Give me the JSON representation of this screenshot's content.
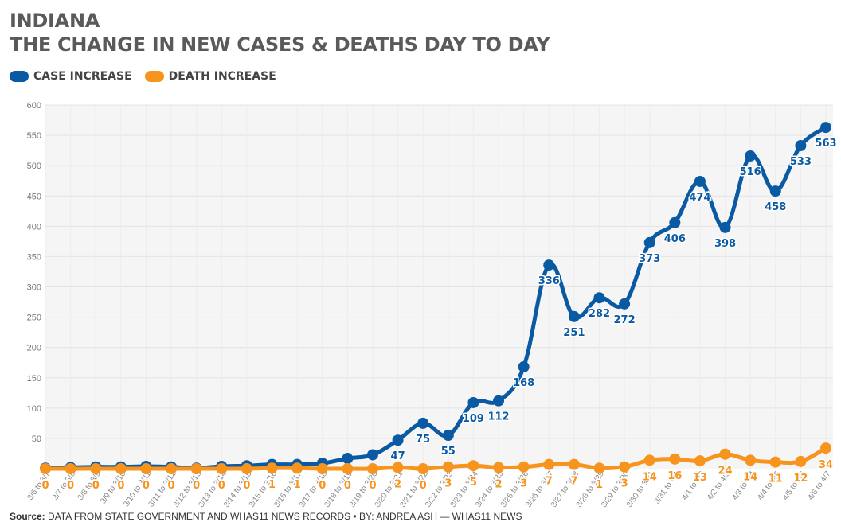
{
  "title": "INDIANA",
  "subtitle": "THE CHANGE IN NEW CASES & DEATHS DAY TO DAY",
  "legend": [
    {
      "label": "CASE INCREASE",
      "color": "#0a5aa3"
    },
    {
      "label": "DEATH INCREASE",
      "color": "#f7941d"
    }
  ],
  "source": {
    "label": "Source:",
    "text": "DATA FROM STATE GOVERNMENT AND WHAS11 NEWS RECORDS • BY: ANDREA ASH — WHAS11 NEWS"
  },
  "chart_data": {
    "type": "line",
    "categories": [
      "3/6 to 3/7",
      "3/7 to 3/8",
      "3/8 to 3/9",
      "3/9 to 3/10",
      "3/10 to 3/11",
      "3/11 to 3/12",
      "3/12 to 3/13",
      "3/13 to 3/14",
      "3/14 to 3/15",
      "3/15 to 3/16",
      "3/16 to 3/17",
      "3/17 to 3/18",
      "3/18 to 3/19",
      "3/19 to 3/20",
      "3/20 to 3/21",
      "3/21 to 3/22",
      "3/22 to 3/23",
      "3/23 to 3/24",
      "3/24 to 3/25",
      "3/25 to 3/26",
      "3/26 to 3/27",
      "3/27 to 3/28",
      "3/28 to 3/29",
      "3/29 to 3/30",
      "3/30 to 3/31",
      "3/31 to 4/1",
      "4/1 to 4/2",
      "4/2 to 4/3",
      "4/3 to 4/4",
      "4/4 to 4/5",
      "4/5 to 4/6",
      "4/6 to 4/7"
    ],
    "series": [
      {
        "name": "CASE INCREASE",
        "color": "#0a5aa3",
        "values": [
          1,
          2,
          3,
          3,
          4,
          3,
          1,
          4,
          5,
          7,
          7,
          9,
          17,
          23,
          47,
          75,
          55,
          109,
          112,
          168,
          336,
          251,
          282,
          272,
          373,
          406,
          474,
          398,
          516,
          458,
          533,
          563
        ],
        "labels": [
          "",
          "",
          "",
          "",
          "",
          "",
          "",
          "",
          "",
          "",
          "",
          "",
          "",
          "",
          "47",
          "75",
          "55",
          "109",
          "112",
          "168",
          "336",
          "251",
          "282",
          "272",
          "373",
          "406",
          "474",
          "398",
          "516",
          "458",
          "533",
          "563"
        ]
      },
      {
        "name": "DEATH INCREASE",
        "color": "#f7941d",
        "values": [
          0,
          0,
          0,
          0,
          0,
          0,
          0,
          0,
          0,
          1,
          1,
          0,
          0,
          0,
          2,
          0,
          3,
          5,
          2,
          3,
          7,
          7,
          1,
          3,
          14,
          16,
          13,
          24,
          14,
          11,
          12,
          34
        ],
        "labels": [
          "0",
          "0",
          "0",
          "0",
          "0",
          "0",
          "0",
          "0",
          "0",
          "1",
          "1",
          "0",
          "0",
          "0",
          "2",
          "0",
          "3",
          "5",
          "2",
          "3",
          "7",
          "7",
          "1",
          "3",
          "14",
          "16",
          "13",
          "24",
          "14",
          "11",
          "12",
          "34"
        ]
      }
    ],
    "ylim": [
      0,
      600
    ],
    "yticks": [
      50,
      100,
      150,
      200,
      250,
      300,
      350,
      400,
      450,
      500,
      550,
      600
    ],
    "grid": true,
    "legend_position": "top-left"
  }
}
